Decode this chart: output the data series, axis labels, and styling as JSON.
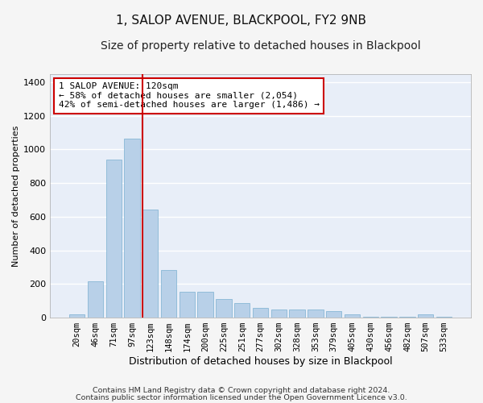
{
  "title": "1, SALOP AVENUE, BLACKPOOL, FY2 9NB",
  "subtitle": "Size of property relative to detached houses in Blackpool",
  "xlabel": "Distribution of detached houses by size in Blackpool",
  "ylabel": "Number of detached properties",
  "categories": [
    "20sqm",
    "46sqm",
    "71sqm",
    "97sqm",
    "123sqm",
    "148sqm",
    "174sqm",
    "200sqm",
    "225sqm",
    "251sqm",
    "277sqm",
    "302sqm",
    "328sqm",
    "353sqm",
    "379sqm",
    "405sqm",
    "430sqm",
    "456sqm",
    "482sqm",
    "507sqm",
    "533sqm"
  ],
  "values": [
    20,
    215,
    940,
    1065,
    645,
    285,
    155,
    155,
    110,
    85,
    60,
    50,
    50,
    50,
    40,
    20,
    5,
    5,
    5,
    20,
    5
  ],
  "bar_color": "#b8d0e8",
  "bar_edge_color": "#7aafd0",
  "background_color": "#e8eef8",
  "grid_color": "#ffffff",
  "vline_color": "#cc0000",
  "vline_x_index": 4,
  "annotation_text": "1 SALOP AVENUE: 120sqm\n← 58% of detached houses are smaller (2,054)\n42% of semi-detached houses are larger (1,486) →",
  "annotation_box_color": "#ffffff",
  "annotation_box_edge": "#cc0000",
  "ylim": [
    0,
    1450
  ],
  "yticks": [
    0,
    200,
    400,
    600,
    800,
    1000,
    1200,
    1400
  ],
  "footer_line1": "Contains HM Land Registry data © Crown copyright and database right 2024.",
  "footer_line2": "Contains public sector information licensed under the Open Government Licence v3.0.",
  "fig_bg": "#f5f5f5"
}
